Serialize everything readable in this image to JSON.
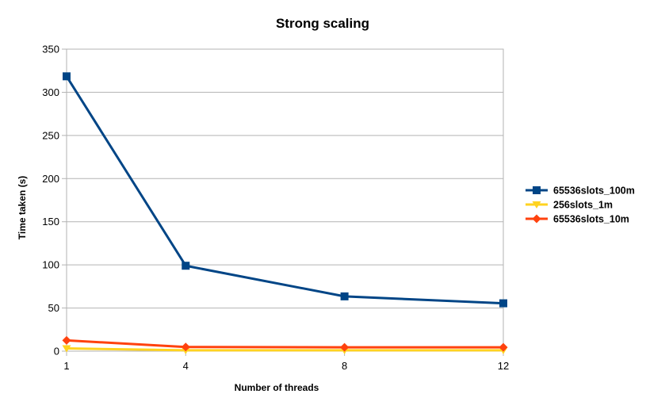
{
  "chart_data": {
    "type": "line",
    "title": "Strong scaling",
    "xlabel": "Number of threads",
    "ylabel": "Time taken (s)",
    "x": [
      1,
      4,
      8,
      12
    ],
    "x_tick_labels": [
      "1",
      "4",
      "8",
      "12"
    ],
    "ylim": [
      0,
      350
    ],
    "y_ticks": [
      0,
      50,
      100,
      150,
      200,
      250,
      300,
      350
    ],
    "grid": "horizontal",
    "legend_position": "right",
    "series": [
      {
        "name": "65536slots_100m",
        "color": "#004586",
        "marker": "square",
        "values": [
          318.5,
          99,
          63.5,
          55.5
        ]
      },
      {
        "name": "256slots_1m",
        "color": "#FFD320",
        "marker": "triangle",
        "values": [
          3.2,
          1.0,
          1.0,
          1.0
        ]
      },
      {
        "name": "65536slots_10m",
        "color": "#FF420E",
        "marker": "diamond",
        "values": [
          12.5,
          4.8,
          4.5,
          4.5
        ]
      }
    ]
  }
}
